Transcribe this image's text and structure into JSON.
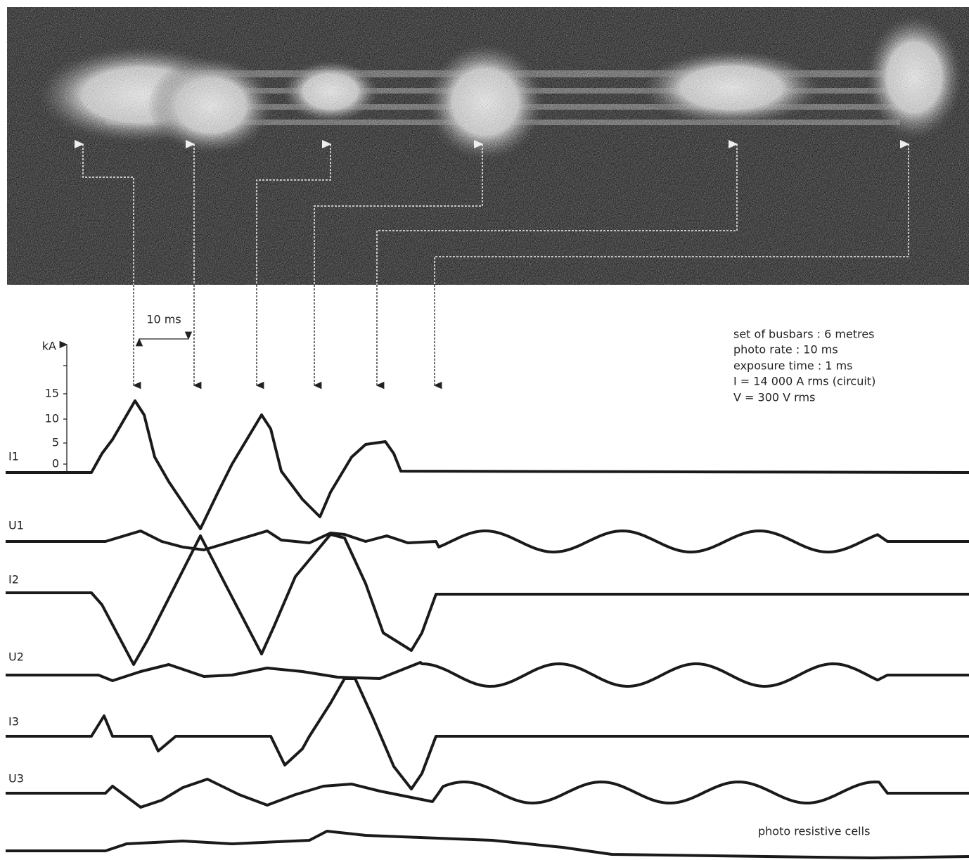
{
  "figure": {
    "interval_label": "10 ms",
    "axis_unit": "kA",
    "axis_ticks": [
      "15",
      "10",
      "5",
      "0"
    ],
    "trace_labels": [
      "I1",
      "U1",
      "I2",
      "U2",
      "I3",
      "U3"
    ],
    "notes": [
      "set of busbars : 6 metres",
      "photo rate : 10 ms",
      "exposure time : 1 ms",
      "I = 14 000 A rms (circuit)",
      "V = 300 V rms"
    ],
    "sensor_label": "photo resistive cells"
  }
}
